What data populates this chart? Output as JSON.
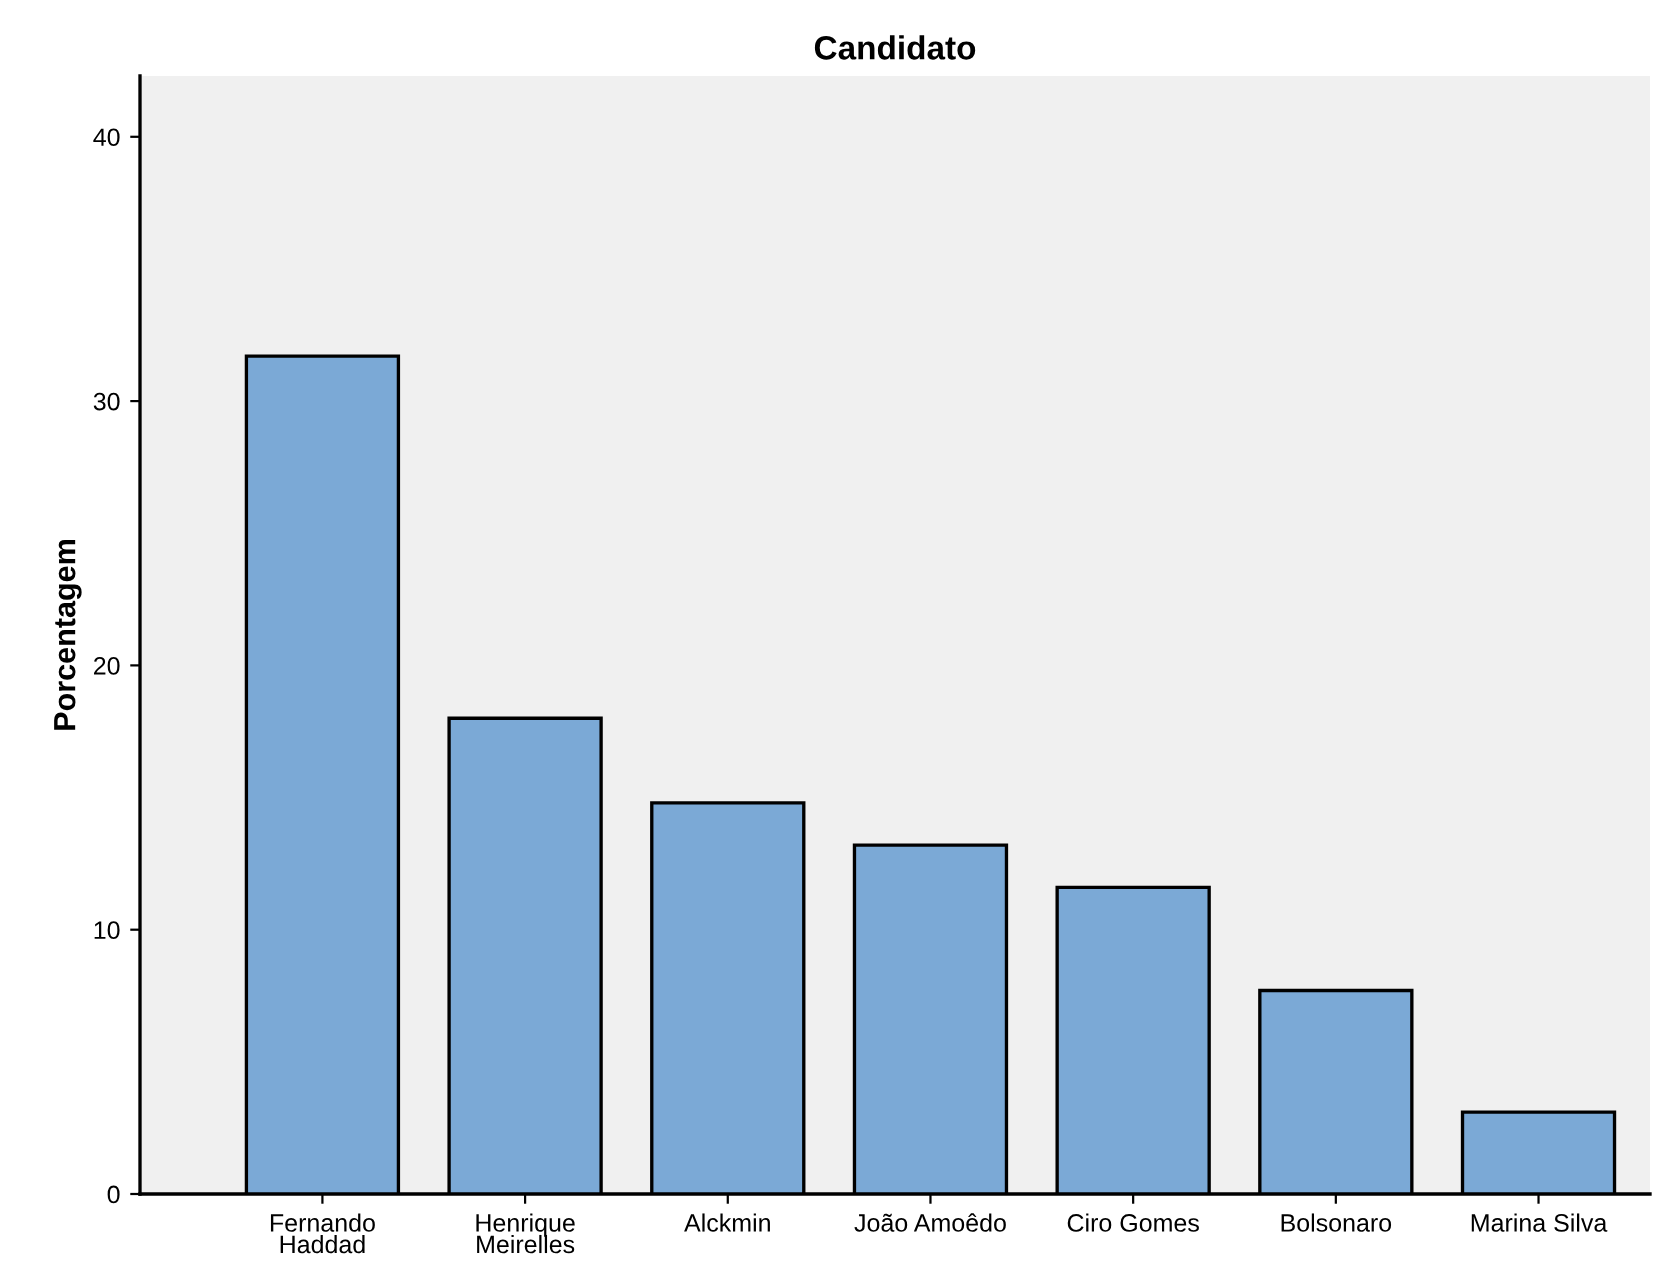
{
  "chart_data": {
    "type": "bar",
    "title": "Candidato",
    "ylabel": "Porcentagem",
    "categories": [
      "Fernando\nHaddad",
      "Henrique\nMeirelles",
      "Alckmin",
      "João Amoêdo",
      "Ciro Gomes",
      "Bolsonaro",
      "Marina Silva"
    ],
    "values": [
      31.7,
      18.0,
      14.8,
      13.2,
      11.6,
      7.7,
      3.1
    ],
    "color": "#7ba9d6",
    "ylim": [
      0,
      42.3
    ],
    "yticks": [
      0,
      10,
      20,
      30,
      40
    ],
    "grid": false,
    "legend": false
  }
}
